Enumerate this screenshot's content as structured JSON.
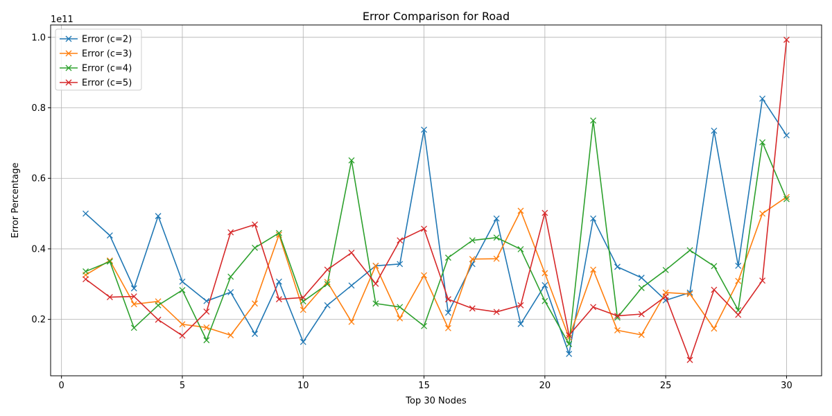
{
  "chart_data": {
    "type": "line",
    "title": "Error Comparison for Road",
    "xlabel": "Top 30 Nodes",
    "ylabel": "Error Percentage",
    "y_offset_label": "1e11",
    "y_scale": 100000000000.0,
    "xlim": [
      -0.45,
      31.45
    ],
    "ylim": [
      0.04,
      1.035
    ],
    "x_ticks": [
      0,
      5,
      10,
      15,
      20,
      25,
      30
    ],
    "x_tick_labels": [
      "0",
      "5",
      "10",
      "15",
      "20",
      "25",
      "30"
    ],
    "y_ticks": [
      0.2,
      0.4,
      0.6,
      0.8,
      1.0
    ],
    "y_tick_labels": [
      "0.2",
      "0.4",
      "0.6",
      "0.8",
      "1.0"
    ],
    "grid": true,
    "legend_position": "upper-left",
    "marker": "x",
    "x": [
      1,
      2,
      3,
      4,
      5,
      6,
      7,
      8,
      9,
      10,
      11,
      12,
      13,
      14,
      15,
      16,
      17,
      18,
      19,
      20,
      21,
      22,
      23,
      24,
      25,
      26,
      27,
      28,
      29,
      30
    ],
    "series": [
      {
        "name": "Error (c=2)",
        "color": "#1f77b4",
        "values": [
          0.5,
          0.438,
          0.288,
          0.493,
          0.307,
          0.252,
          0.277,
          0.159,
          0.307,
          0.136,
          0.24,
          0.296,
          0.352,
          0.357,
          0.738,
          0.219,
          0.357,
          0.486,
          0.187,
          0.297,
          0.102,
          0.486,
          0.349,
          0.318,
          0.254,
          0.276,
          0.735,
          0.352,
          0.826,
          0.722
        ]
      },
      {
        "name": "Error (c=3)",
        "color": "#ff7f0e",
        "values": [
          0.326,
          0.367,
          0.243,
          0.251,
          0.186,
          0.177,
          0.155,
          0.245,
          0.44,
          0.227,
          0.306,
          0.193,
          0.352,
          0.203,
          0.325,
          0.175,
          0.371,
          0.372,
          0.508,
          0.331,
          0.148,
          0.341,
          0.169,
          0.156,
          0.276,
          0.272,
          0.174,
          0.309,
          0.5,
          0.547
        ]
      },
      {
        "name": "Error (c=4)",
        "color": "#2ca02c",
        "values": [
          0.336,
          0.364,
          0.176,
          0.24,
          0.283,
          0.141,
          0.321,
          0.403,
          0.445,
          0.251,
          0.3,
          0.651,
          0.245,
          0.235,
          0.181,
          0.375,
          0.424,
          0.432,
          0.399,
          0.252,
          0.13,
          0.764,
          0.205,
          0.289,
          0.34,
          0.396,
          0.351,
          0.226,
          0.702,
          0.541
        ]
      },
      {
        "name": "Error (c=5)",
        "color": "#d62728",
        "values": [
          0.314,
          0.263,
          0.265,
          0.199,
          0.154,
          0.222,
          0.447,
          0.469,
          0.257,
          0.262,
          0.341,
          0.389,
          0.301,
          0.424,
          0.457,
          0.257,
          0.231,
          0.221,
          0.24,
          0.502,
          0.155,
          0.235,
          0.21,
          0.215,
          0.265,
          0.085,
          0.284,
          0.213,
          0.31,
          0.993
        ]
      }
    ]
  }
}
